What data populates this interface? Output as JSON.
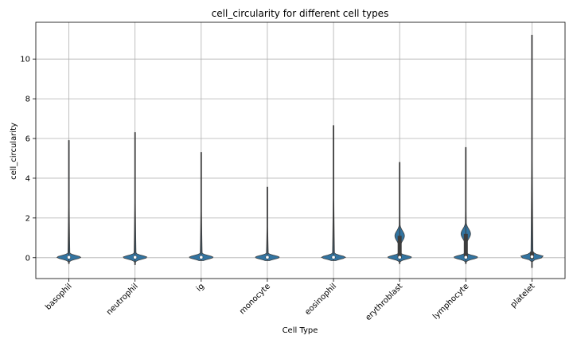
{
  "chart_data": {
    "type": "violin",
    "title": "cell_circularity for different cell types",
    "xlabel": "Cell Type",
    "ylabel": "cell_circularity",
    "categories": [
      "basophil",
      "neutrophil",
      "ig",
      "monocyte",
      "eosinophil",
      "erythroblast",
      "lymphocyte",
      "platelet"
    ],
    "ylim": [
      -1.05,
      11.85
    ],
    "yticks": [
      0,
      2,
      4,
      6,
      8,
      10
    ],
    "grid": true,
    "colors": {
      "violin_fill": "#3274a1",
      "violin_edge": "#404040",
      "box": "#3d3d3d",
      "median": "#ffffff",
      "grid": "#b0b0b0"
    },
    "series": [
      {
        "category": "basophil",
        "min": -0.3,
        "max": 5.9,
        "median": 0.02,
        "q1": -0.02,
        "q3": 0.05
      },
      {
        "category": "neutrophil",
        "min": -0.35,
        "max": 6.3,
        "median": 0.02,
        "q1": -0.02,
        "q3": 0.05
      },
      {
        "category": "ig",
        "min": -0.15,
        "max": 5.3,
        "median": 0.02,
        "q1": -0.02,
        "q3": 0.05
      },
      {
        "category": "monocyte",
        "min": -0.15,
        "max": 3.55,
        "median": 0.02,
        "q1": -0.02,
        "q3": 0.05
      },
      {
        "category": "eosinophil",
        "min": -0.15,
        "max": 6.65,
        "median": 0.02,
        "q1": -0.02,
        "q3": 0.05
      },
      {
        "category": "erythroblast",
        "min": -0.3,
        "max": 4.8,
        "median": 0.02,
        "q1": -0.02,
        "q3": 1.1
      },
      {
        "category": "lymphocyte",
        "min": -0.3,
        "max": 5.55,
        "median": 0.02,
        "q1": -0.02,
        "q3": 1.2
      },
      {
        "category": "platelet",
        "min": -0.5,
        "max": 11.2,
        "median": 0.05,
        "q1": -0.05,
        "q3": 0.3
      }
    ]
  }
}
